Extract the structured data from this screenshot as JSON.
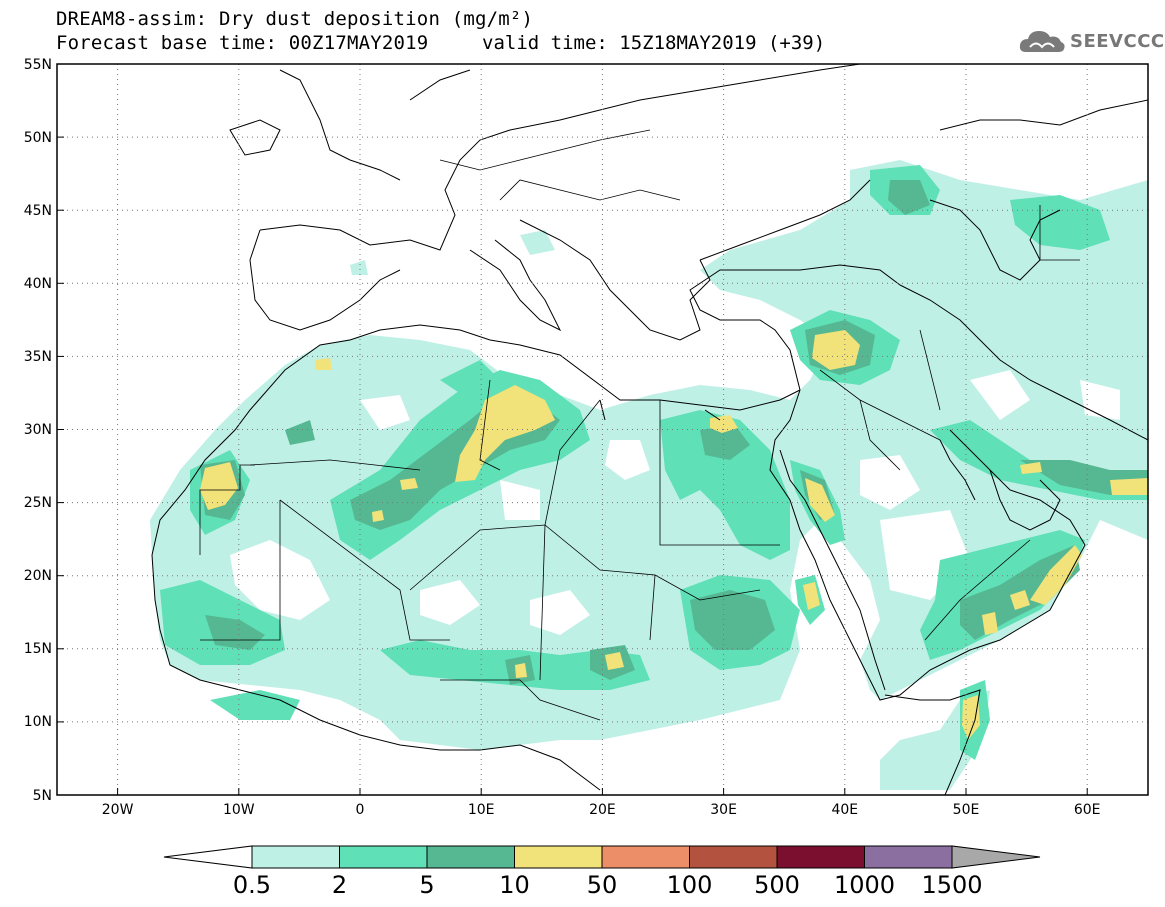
{
  "header": {
    "title_line1": "DREAM8-assim: Dry dust deposition (mg/m²)",
    "title_line2": "Forecast base time: 00Z17MAY2019",
    "valid_time": "valid time: 15Z18MAY2019 (+39)"
  },
  "logo": {
    "text": "SEEVCCC",
    "icon": "cloud-icon"
  },
  "axes": {
    "lat_labels": [
      "55N",
      "50N",
      "45N",
      "40N",
      "35N",
      "30N",
      "25N",
      "20N",
      "15N",
      "10N",
      "5N"
    ],
    "lon_labels": [
      "20W",
      "10W",
      "0",
      "10E",
      "20E",
      "30E",
      "40E",
      "50E",
      "60E"
    ],
    "lon_range": [
      -25,
      65
    ],
    "lat_range": [
      5,
      55
    ]
  },
  "colorbar": {
    "labels": [
      "0.5",
      "2",
      "5",
      "10",
      "50",
      "100",
      "500",
      "1000",
      "1500"
    ],
    "colors": [
      "#bff0e6",
      "#5fe0b6",
      "#55b892",
      "#f1e27a",
      "#ec8f68",
      "#b3523f",
      "#7a0f2f",
      "#8b6fa0"
    ],
    "under_color": "#ffffff",
    "over_color": "#a8a8a8"
  }
}
